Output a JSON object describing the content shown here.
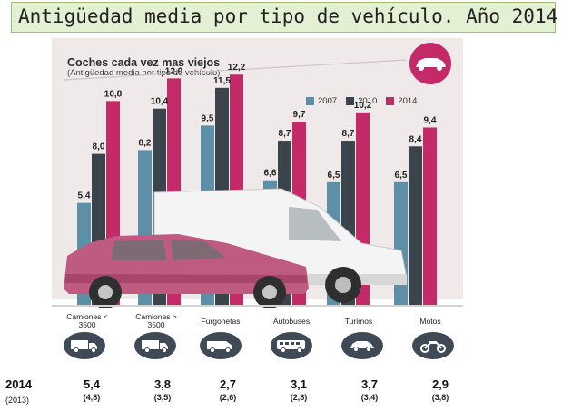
{
  "page_title": "Antigüedad media por tipo de vehículo. Año 2014",
  "chart_data": {
    "type": "bar",
    "title": "Coches cada vez mas viejos",
    "subtitle": "(Antigüedad media por tipo de vehículo)",
    "categories": [
      "Camiones < 3500",
      "Camiones > 3500",
      "Furgonetas",
      "Autobuses",
      "Turimos",
      "Motos"
    ],
    "series": [
      {
        "name": "2007",
        "values": [
          5.4,
          8.2,
          9.5,
          6.6,
          6.5,
          6.5
        ]
      },
      {
        "name": "2010",
        "values": [
          8.0,
          10.4,
          11.5,
          8.7,
          8.7,
          8.4
        ]
      },
      {
        "name": "2014",
        "values": [
          10.8,
          12.0,
          12.2,
          9.7,
          10.2,
          9.4
        ]
      }
    ],
    "value_labels": [
      [
        "5,4",
        "8,0",
        "10,8"
      ],
      [
        "8,2",
        "10,4",
        "12,0"
      ],
      [
        "9,5",
        "11,5",
        "12,2"
      ],
      [
        "6,6",
        "8,7",
        "9,7"
      ],
      [
        "6,5",
        "8,7",
        "10,2"
      ],
      [
        "6,5",
        "8,4",
        "9,4"
      ]
    ],
    "ylim": [
      0,
      15
    ],
    "colors": {
      "2007": "#5d8fa6",
      "2010": "#3b444c",
      "2014": "#c42a68"
    },
    "legend_position": "top-right"
  },
  "category_labels": [
    {
      "line1": "Camiones <",
      "line2": "3500"
    },
    {
      "line1": "Camiones >",
      "line2": "3500"
    },
    {
      "line1": "Furgonetas",
      "line2": ""
    },
    {
      "line1": "Autobuses",
      "line2": ""
    },
    {
      "line1": "Turimos",
      "line2": ""
    },
    {
      "line1": "Motos",
      "line2": ""
    }
  ],
  "icons": [
    "truck-icon",
    "truck-icon",
    "van-icon",
    "bus-icon",
    "car-icon",
    "motorcycle-icon"
  ],
  "bottom_row": {
    "year_label": "2014",
    "prev_year_label": "(2013)",
    "values_2014": [
      "5,4",
      "3,8",
      "2,7",
      "3,1",
      "3,7",
      "2,9"
    ],
    "values_2013": [
      "(4,8)",
      "(3,5)",
      "(2,6)",
      "(2,8)",
      "(3,4)",
      "(3,8)"
    ]
  }
}
